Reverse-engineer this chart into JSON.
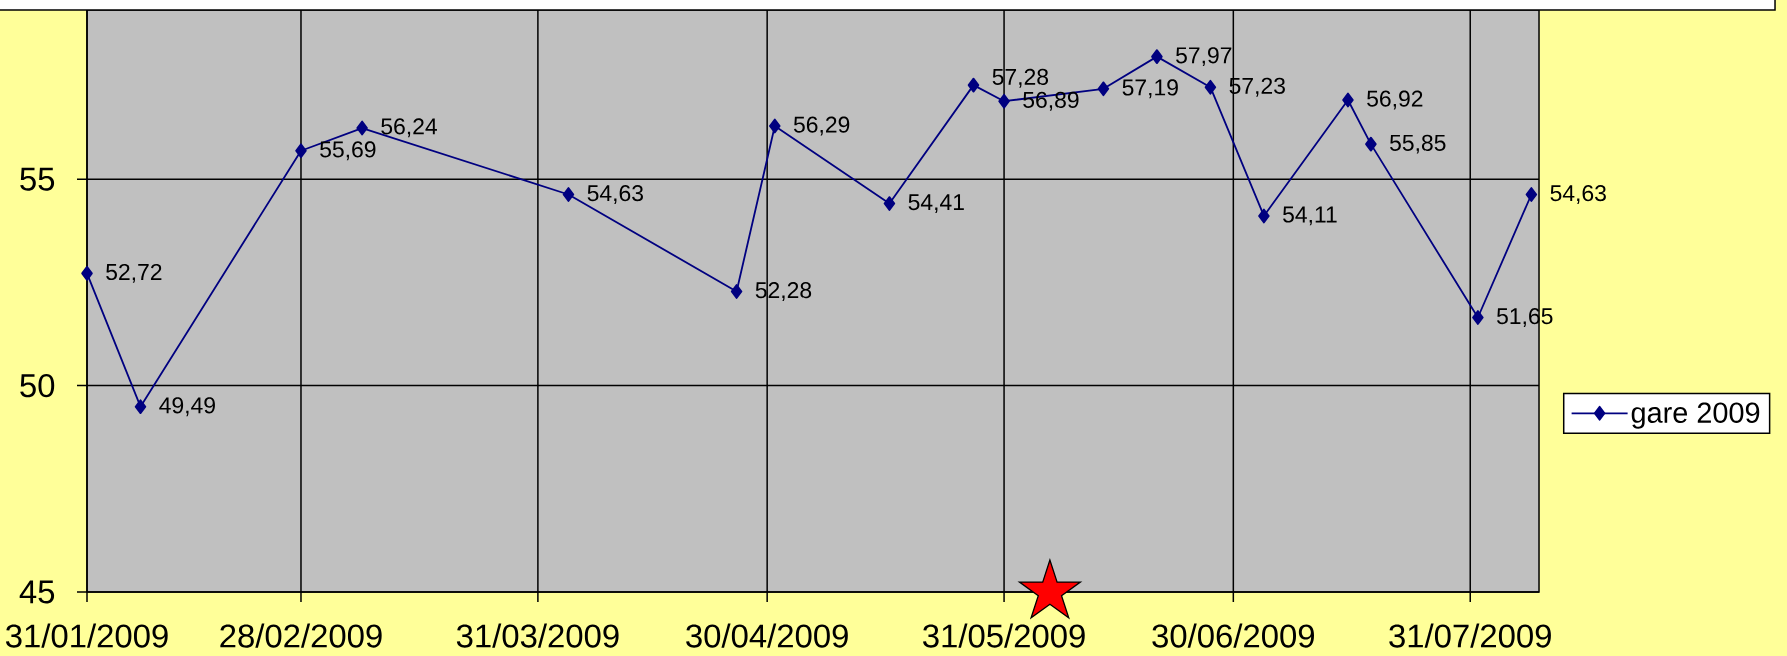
{
  "chart_data": {
    "type": "line",
    "x": [
      "2009-01-31",
      "2009-02-07",
      "2009-02-28",
      "2009-03-08",
      "2009-04-04",
      "2009-04-26",
      "2009-05-01",
      "2009-05-16",
      "2009-05-27",
      "2009-05-31",
      "2009-06-13",
      "2009-06-20",
      "2009-06-27",
      "2009-07-04",
      "2009-07-15",
      "2009-07-18",
      "2009-08-01",
      "2009-08-08"
    ],
    "series": [
      {
        "name": "gare 2009",
        "color": "#000080",
        "values": [
          52.72,
          49.49,
          55.69,
          56.24,
          54.63,
          52.28,
          56.29,
          54.41,
          57.28,
          56.89,
          57.19,
          57.97,
          57.23,
          54.11,
          56.92,
          55.85,
          51.65,
          54.63
        ],
        "value_labels": [
          "52,72",
          "49,49",
          "55,69",
          "56,24",
          "54,63",
          "52,28",
          "56,29",
          "54,41",
          "57,28",
          "56,89",
          "57,19",
          "57,97",
          "57,23",
          "54,11",
          "56,92",
          "55,85",
          "51,65",
          "54,63"
        ]
      },
      {
        "type": "scatter",
        "color": "#ff0000",
        "x": [
          "2009-06-06"
        ],
        "values": [
          45
        ],
        "marker": "star"
      }
    ],
    "xlim": [
      "2009-01-31",
      "2009-08-09"
    ],
    "xticks": [
      {
        "value": "2009-01-31",
        "label": "31/01/2009"
      },
      {
        "value": "2009-02-28",
        "label": "28/02/2009"
      },
      {
        "value": "2009-03-31",
        "label": "31/03/2009"
      },
      {
        "value": "2009-04-30",
        "label": "30/04/2009"
      },
      {
        "value": "2009-05-31",
        "label": "31/05/2009"
      },
      {
        "value": "2009-06-30",
        "label": "30/06/2009"
      },
      {
        "value": "2009-07-31",
        "label": "31/07/2009"
      }
    ],
    "ylim": [
      45,
      59.1
    ],
    "yticks": [
      45,
      50,
      55
    ],
    "grid": true,
    "legend": "right",
    "marker": "diamond",
    "line_style": "solid"
  }
}
